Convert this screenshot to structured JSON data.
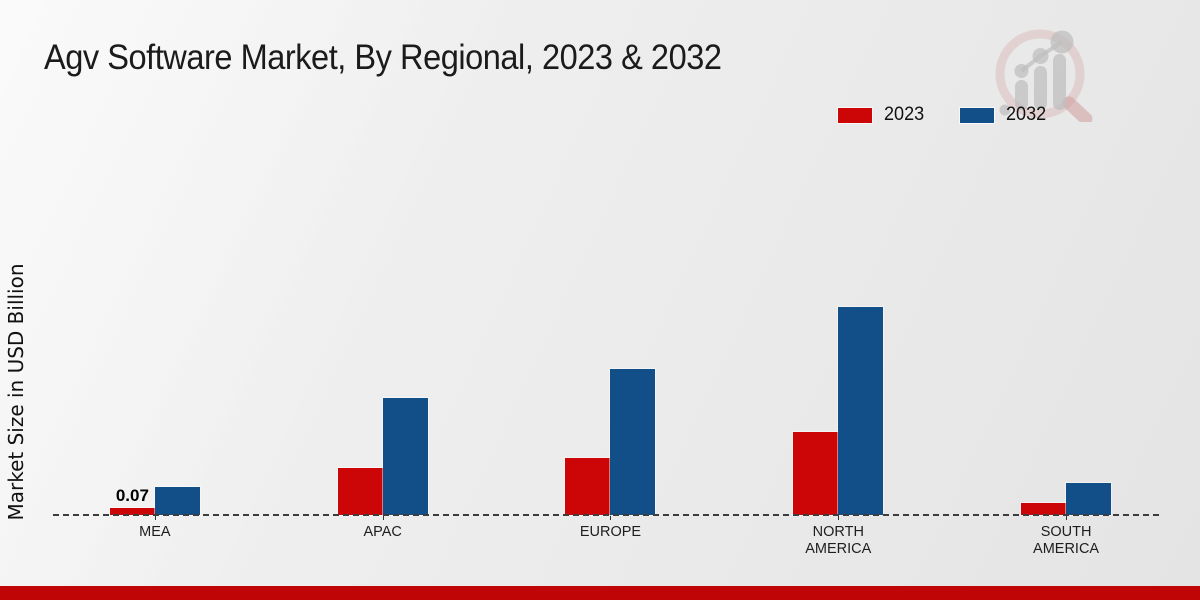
{
  "title": "Agv Software Market, By Regional, 2023 & 2032",
  "ylabel": "Market Size in USD Billion",
  "colors": {
    "series_2023": "#cc0606",
    "series_2032": "#124f88",
    "footer_band": "#bf0505",
    "axis_dash": "#3d3d3d"
  },
  "icons": {
    "watermark": "magnifier-bar-chart-logo"
  },
  "chart_data": {
    "type": "bar",
    "title": "Agv Software Market, By Regional, 2023 & 2032",
    "xlabel": "",
    "ylabel": "Market Size in USD Billion",
    "categories": [
      "MEA",
      "APAC",
      "EUROPE",
      "NORTH AMERICA",
      "SOUTH AMERICA"
    ],
    "series": [
      {
        "name": "2023",
        "color": "#cc0606",
        "values": [
          0.07,
          0.47,
          0.57,
          0.83,
          0.12
        ],
        "data_labels": [
          "0.07",
          null,
          null,
          null,
          null
        ]
      },
      {
        "name": "2032",
        "color": "#124f88",
        "values": [
          0.28,
          1.17,
          1.46,
          2.08,
          0.32
        ],
        "data_labels": [
          null,
          null,
          null,
          null,
          null
        ]
      }
    ],
    "ylim": [
      0,
      2.6
    ],
    "grid": false,
    "legend_position": "top-right",
    "baseline_style": "dashed",
    "y_axis_ticks_visible": false
  }
}
